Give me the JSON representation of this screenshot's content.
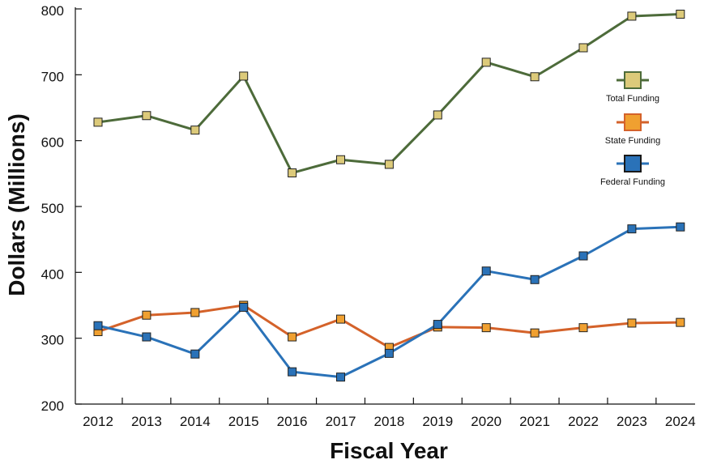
{
  "chart_data": {
    "type": "line",
    "title": "",
    "xlabel": "Fiscal Year",
    "ylabel": "Dollars (Millions)",
    "ylim": [
      200,
      800
    ],
    "yticks": [
      200,
      300,
      400,
      500,
      600,
      700,
      800
    ],
    "categories": [
      "2012",
      "2013",
      "2014",
      "2015",
      "2016",
      "2017",
      "2018",
      "2019",
      "2020",
      "2021",
      "2022",
      "2023",
      "2024"
    ],
    "grid": false,
    "legend_position": "right",
    "series": [
      {
        "name": "Total Funding",
        "line_color": "#4d6b3a",
        "marker_color": "#dcca7a",
        "values": [
          628,
          638,
          616,
          698,
          551,
          571,
          564,
          639,
          719,
          697,
          741,
          789,
          792
        ]
      },
      {
        "name": "State Funding",
        "line_color": "#d4622a",
        "marker_color": "#f0a030",
        "values": [
          310,
          335,
          339,
          350,
          302,
          329,
          286,
          317,
          316,
          308,
          316,
          323,
          324
        ]
      },
      {
        "name": "Federal Funding",
        "line_color": "#2a72b8",
        "marker_color": "#2a72b8",
        "values": [
          319,
          302,
          276,
          347,
          249,
          241,
          277,
          321,
          402,
          389,
          425,
          466,
          469
        ]
      }
    ]
  }
}
